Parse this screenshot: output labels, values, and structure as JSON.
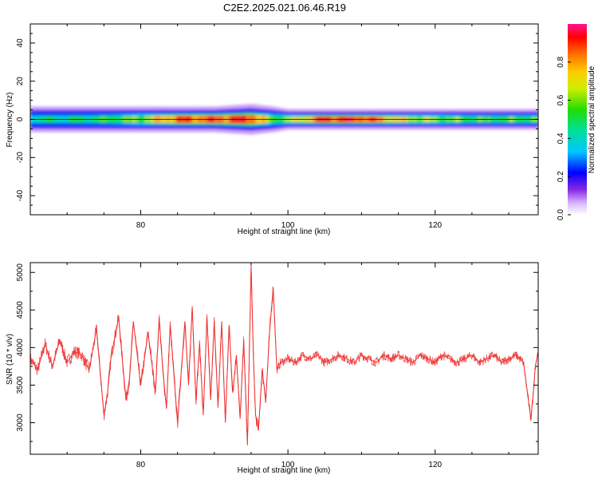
{
  "title": "C2E2.2025.021.06.46.R19",
  "chart_data": [
    {
      "type": "heatmap",
      "xlabel": "Height of straight line (km)",
      "ylabel": "Frequency (Hz)",
      "xlim": [
        65,
        134
      ],
      "ylim": [
        -50,
        50
      ],
      "xticks": [
        80,
        100,
        120
      ],
      "yticks": [
        -40,
        -20,
        0,
        20,
        40
      ],
      "ridge_frequency_hz": 0,
      "profile": [
        {
          "x": 65,
          "width_hz": 5,
          "peak": 0.45
        },
        {
          "x": 70,
          "width_hz": 5,
          "peak": 0.45
        },
        {
          "x": 75,
          "width_hz": 5,
          "peak": 0.5
        },
        {
          "x": 80,
          "width_hz": 5,
          "peak": 0.6
        },
        {
          "x": 85,
          "width_hz": 5,
          "peak": 0.85
        },
        {
          "x": 90,
          "width_hz": 5,
          "peak": 0.85
        },
        {
          "x": 95,
          "width_hz": 6,
          "peak": 0.9
        },
        {
          "x": 98,
          "width_hz": 5,
          "peak": 0.55
        },
        {
          "x": 100,
          "width_hz": 4,
          "peak": 0.6
        },
        {
          "x": 105,
          "width_hz": 4,
          "peak": 0.9
        },
        {
          "x": 110,
          "width_hz": 4,
          "peak": 0.9
        },
        {
          "x": 115,
          "width_hz": 4,
          "peak": 0.7
        },
        {
          "x": 120,
          "width_hz": 4,
          "peak": 0.6
        },
        {
          "x": 125,
          "width_hz": 4,
          "peak": 0.55
        },
        {
          "x": 130,
          "width_hz": 4,
          "peak": 0.55
        },
        {
          "x": 134,
          "width_hz": 4,
          "peak": 0.55
        }
      ],
      "colorbar": {
        "label": "Normalized spectral amplitude",
        "range": [
          0,
          1
        ],
        "ticks": [
          0.0,
          0.2,
          0.4,
          0.6,
          0.8
        ]
      }
    },
    {
      "type": "line",
      "xlabel": "Height of straight line (km)",
      "ylabel": "SNR (10 * v/v)",
      "xlim": [
        65,
        134
      ],
      "ylim": [
        2580,
        5130
      ],
      "xticks": [
        80,
        100,
        120
      ],
      "yticks": [
        3000,
        3500,
        4000,
        4500,
        5000
      ],
      "color": "#ee3333",
      "x": [
        65,
        66,
        67,
        68,
        69,
        70,
        71,
        72,
        73,
        74,
        75,
        75.5,
        76,
        77,
        78,
        78.5,
        79,
        80,
        81,
        82,
        82.5,
        83,
        83.5,
        84,
        85,
        86,
        86.5,
        87,
        87.5,
        88,
        88.5,
        89,
        89.5,
        90,
        90.5,
        91,
        91.5,
        92,
        92.5,
        93,
        93.5,
        94,
        94.5,
        95,
        95.3,
        95.6,
        96,
        96.5,
        97,
        97.5,
        98,
        98.5,
        99,
        100,
        101,
        102,
        103,
        104,
        105,
        106,
        107,
        108,
        109,
        110,
        111,
        112,
        113,
        114,
        115,
        116,
        117,
        118,
        119,
        120,
        121,
        122,
        123,
        124,
        125,
        126,
        127,
        128,
        129,
        130,
        131,
        132,
        133,
        133.3,
        133.6,
        134
      ],
      "y": [
        3850,
        3700,
        4050,
        3750,
        4100,
        3800,
        3950,
        3900,
        3700,
        4250,
        3100,
        3400,
        3900,
        4400,
        3300,
        3600,
        4350,
        3500,
        4200,
        3400,
        4400,
        3700,
        3200,
        4300,
        3000,
        4350,
        3500,
        4550,
        3300,
        4050,
        3100,
        4400,
        3300,
        4350,
        3200,
        4350,
        3000,
        4300,
        3400,
        3900,
        3050,
        4100,
        2700,
        5100,
        3900,
        3100,
        2900,
        3700,
        3300,
        4200,
        4800,
        3700,
        3800,
        3850,
        3800,
        3900,
        3850,
        3900,
        3800,
        3850,
        3900,
        3850,
        3800,
        3900,
        3850,
        3800,
        3900,
        3850,
        3900,
        3850,
        3800,
        3900,
        3850,
        3800,
        3900,
        3850,
        3800,
        3850,
        3900,
        3800,
        3850,
        3900,
        3800,
        3850,
        3900,
        3800,
        3050,
        3350,
        3750,
        3950
      ]
    }
  ]
}
